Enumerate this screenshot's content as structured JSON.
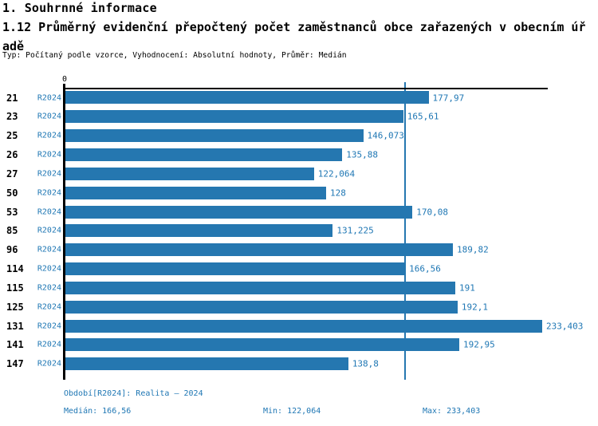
{
  "header": {
    "title": "1. Souhrnné informace",
    "subtitle_lines": [
      "1.12 Průměrný evidenční přepočtený počet zaměstnanců obce zařazených v obecním úř",
      "adě"
    ],
    "meta": "Typ: Počítaný podle vzorce, Vyhodnocení: Absolutní hodnoty, Průměr: Medián"
  },
  "chart_data": {
    "type": "bar",
    "orientation": "horizontal",
    "title": "1.12 Průměrný evidenční přepočtený počet zaměstnanců obce zařazených v obecním úřadě",
    "series_label": "R2024",
    "categories": [
      "21",
      "23",
      "25",
      "26",
      "27",
      "50",
      "53",
      "85",
      "96",
      "114",
      "115",
      "125",
      "131",
      "141",
      "147"
    ],
    "values": [
      177.97,
      165.61,
      146.073,
      135.88,
      122.064,
      128,
      170.08,
      131.225,
      189.82,
      166.56,
      191,
      192.1,
      233.403,
      192.95,
      138.8
    ],
    "value_labels": [
      "177,97",
      "165,61",
      "146,073",
      "135,88",
      "122,064",
      "128",
      "170,08",
      "131,225",
      "189,82",
      "166,56",
      "191",
      "192,1",
      "233,403",
      "192,95",
      "138,8"
    ],
    "x_axis": {
      "zero_label": "0",
      "min": 0,
      "max": 236
    },
    "median_value": 166.56,
    "grid": false,
    "legend_position": "none",
    "bar_color": "#2577b0",
    "median_line_color": "#2577b0",
    "label_color": "#1f77b4",
    "axis_color": "#000000"
  },
  "footer": {
    "period": "Období[R2024]: Realita – 2024",
    "median": "Medián: 166,56",
    "min": "Min: 122,064",
    "max": "Max: 233,403"
  }
}
